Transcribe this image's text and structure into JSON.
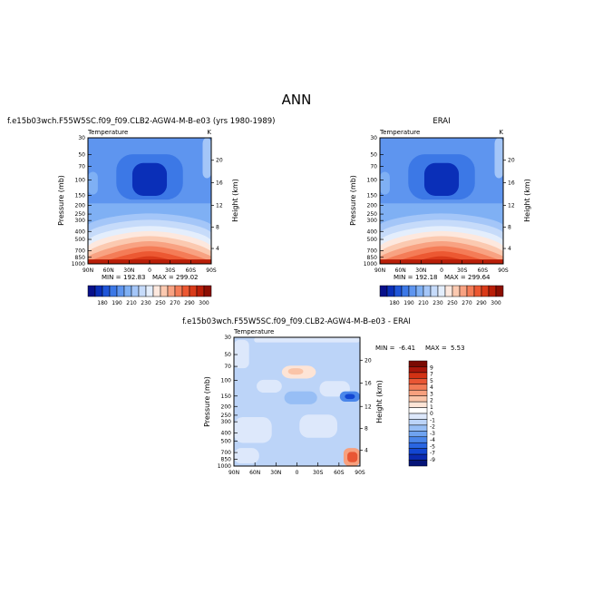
{
  "figure_title": "ANN",
  "colors": {
    "obs_palette": [
      "#08108a",
      "#0a2fb8",
      "#1f55d8",
      "#3c78e6",
      "#5e95ef",
      "#7fb0f4",
      "#a4c6f8",
      "#c6dbfa",
      "#e4eefc",
      "#fde8de",
      "#fbc9b0",
      "#f8a282",
      "#f47c57",
      "#ec5832",
      "#d93a19",
      "#b91e08",
      "#8c0f02"
    ],
    "diff_palette": [
      "#061478",
      "#0a2ab0",
      "#1246d2",
      "#2a66e2",
      "#4a86ea",
      "#6fa3f0",
      "#97bef5",
      "#bcd4f8",
      "#dde8fb",
      "#ffffff",
      "#fde4d6",
      "#fac4a8",
      "#f7a07e",
      "#f27b56",
      "#e95634",
      "#d23214",
      "#a8160a",
      "#7a0a02"
    ],
    "frame": "#000000"
  },
  "chart_data": [
    {
      "type": "heatmap",
      "title": "f.e15b03wch.F55W5SC.f09_f09.CLB2-AGW4-M-B-e03 (yrs 1980-1989)",
      "subtitle_left": "Temperature",
      "subtitle_right": "K",
      "xlabel": "",
      "ylabel": "Pressure (mb)",
      "ylabel_right": "Height (km)",
      "x_ticks": [
        "90N",
        "60N",
        "30N",
        "0",
        "30S",
        "60S",
        "90S"
      ],
      "y_ticks": [
        "30",
        "50",
        "70",
        "100",
        "150",
        "200",
        "250",
        "300",
        "400",
        "500",
        "700",
        "850",
        "1000"
      ],
      "y_ticks_right": [
        "20",
        "16",
        "12",
        "8",
        "4"
      ],
      "stats": {
        "min_label": "MIN =",
        "min": "192.83",
        "max_label": "MAX =",
        "max": "299.02"
      },
      "colorbar": {
        "orientation": "horizontal",
        "levels": [
          "180",
          "190",
          "210",
          "230",
          "250",
          "270",
          "290",
          "300"
        ]
      }
    },
    {
      "type": "heatmap",
      "title": "ERAI",
      "subtitle_left": "Temperature",
      "subtitle_right": "K",
      "xlabel": "",
      "ylabel": "Pressure (mb)",
      "ylabel_right": "Height (km)",
      "x_ticks": [
        "90N",
        "60N",
        "30N",
        "0",
        "30S",
        "60S",
        "90S"
      ],
      "y_ticks": [
        "30",
        "50",
        "70",
        "100",
        "150",
        "200",
        "250",
        "300",
        "400",
        "500",
        "700",
        "850",
        "1000"
      ],
      "y_ticks_right": [
        "20",
        "16",
        "12",
        "8",
        "4"
      ],
      "stats": {
        "min_label": "MIN =",
        "min": "192.18",
        "max_label": "MAX =",
        "max": "299.64"
      },
      "colorbar": {
        "orientation": "horizontal",
        "levels": [
          "180",
          "190",
          "210",
          "230",
          "250",
          "270",
          "290",
          "300"
        ]
      }
    },
    {
      "type": "heatmap",
      "title": "f.e15b03wch.F55W5SC.f09_f09.CLB2-AGW4-M-B-e03 - ERAI",
      "subtitle_left": "Temperature",
      "subtitle_right": "",
      "xlabel": "",
      "ylabel": "Pressure (mb)",
      "ylabel_right": "Height (km)",
      "x_ticks": [
        "90N",
        "60N",
        "30N",
        "0",
        "30S",
        "60S",
        "90S"
      ],
      "y_ticks": [
        "30",
        "50",
        "70",
        "100",
        "150",
        "200",
        "250",
        "300",
        "400",
        "500",
        "700",
        "850",
        "1000"
      ],
      "y_ticks_right": [
        "20",
        "16",
        "12",
        "8",
        "4"
      ],
      "stats": {
        "min_label": "MIN =",
        "min": "-6.41",
        "max_label": "MAX =",
        "max": "5.53"
      },
      "colorbar": {
        "orientation": "vertical",
        "levels": [
          "9",
          "7",
          "5",
          "4",
          "3",
          "2",
          "1",
          "0",
          "-1",
          "-2",
          "-3",
          "-4",
          "-5",
          "-7",
          "-9"
        ]
      }
    }
  ]
}
